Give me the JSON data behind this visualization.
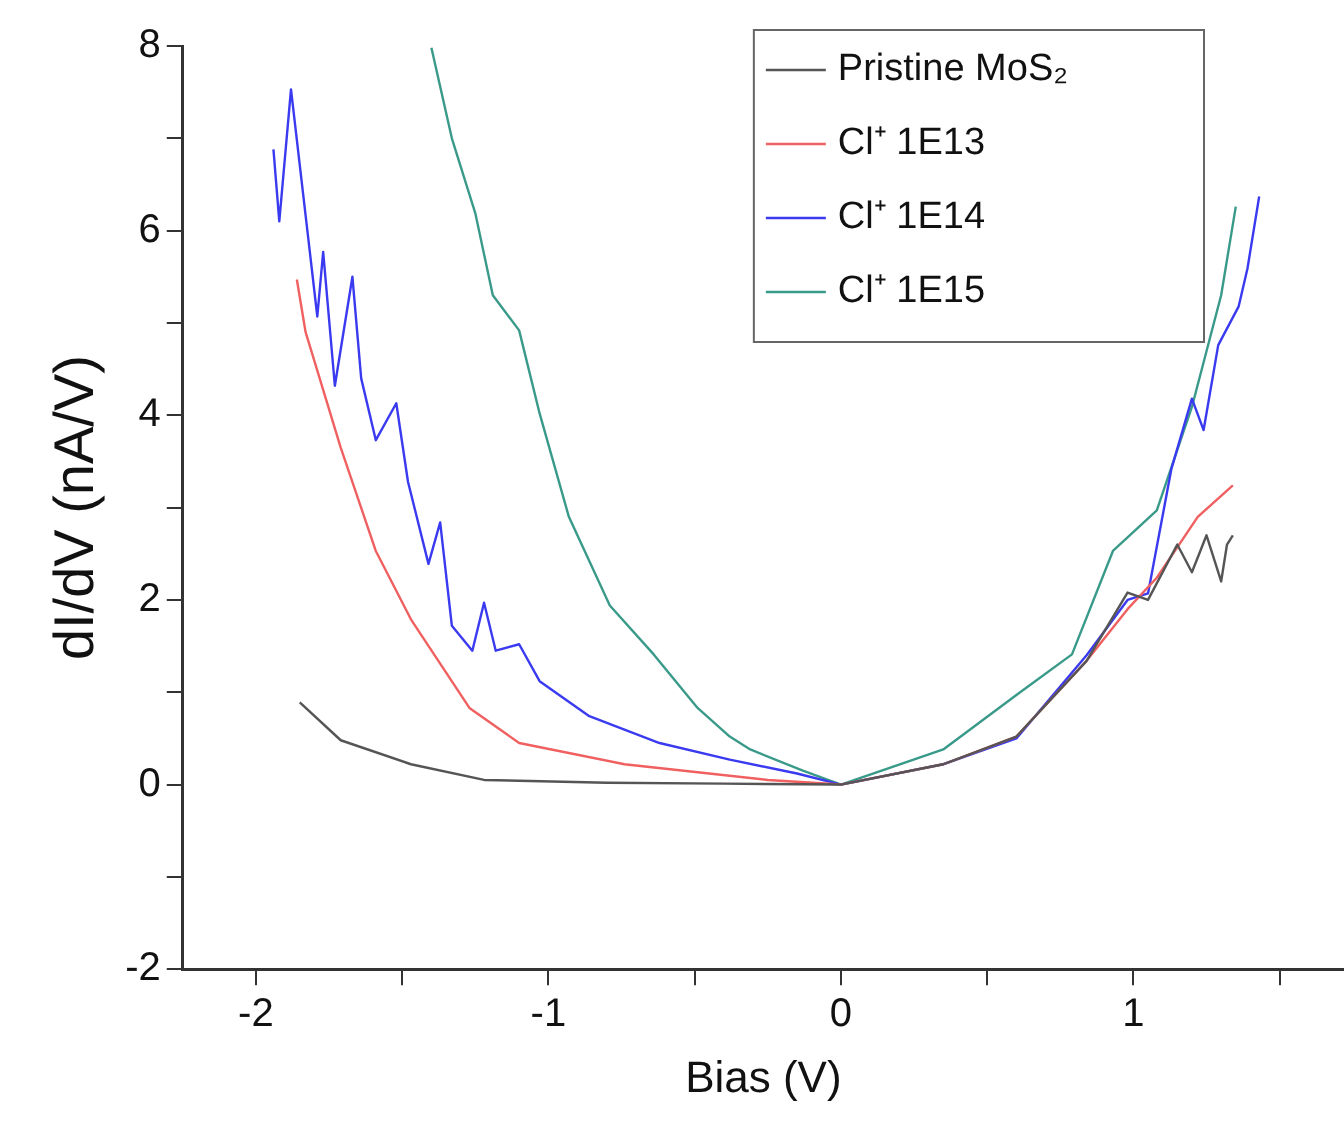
{
  "chart_data": {
    "type": "line",
    "xlabel": "Bias (V)",
    "ylabel": "dI/dV (nA/V)",
    "xlim": [
      -2.25,
      1.72
    ],
    "ylim": [
      -2,
      8
    ],
    "xticks": [
      -2,
      {
        "value": -1.5,
        "label": null
      },
      -1,
      {
        "value": -0.5,
        "label": null
      },
      0,
      {
        "value": 0.5,
        "label": null
      },
      1,
      {
        "value": 1.5,
        "label": null
      }
    ],
    "yticks": [
      -2,
      {
        "value": -1,
        "label": null
      },
      0,
      {
        "value": 1,
        "label": null
      },
      2,
      {
        "value": 3,
        "label": null
      },
      4,
      {
        "value": 5,
        "label": null
      },
      6,
      {
        "value": 7,
        "label": null
      },
      8
    ],
    "grid": false,
    "legend": "top right",
    "marker": "none",
    "line_style": "solid",
    "series": [
      {
        "name": "Pristine MoS₂",
        "color": "#555555",
        "x": [
          -1.85,
          -1.71,
          -1.47,
          -1.22,
          -0.8,
          -0.4,
          0,
          0.35,
          0.6,
          0.84,
          0.98,
          1.05,
          1.15,
          1.2,
          1.25,
          1.3,
          1.32,
          1.34
        ],
        "values": [
          0.89,
          0.48,
          0.22,
          0.05,
          0.02,
          0.01,
          0,
          0.22,
          0.52,
          1.34,
          2.08,
          2.0,
          2.6,
          2.3,
          2.7,
          2.2,
          2.6,
          2.7
        ]
      },
      {
        "name": "Cl⁺ 1E13",
        "color": "#f06060",
        "x": [
          -1.86,
          -1.83,
          -1.71,
          -1.59,
          -1.47,
          -1.27,
          -1.1,
          -0.74,
          -0.25,
          0,
          0.35,
          0.6,
          0.84,
          0.98,
          1.08,
          1.22,
          1.34
        ],
        "values": [
          5.47,
          4.9,
          3.65,
          2.53,
          1.79,
          0.83,
          0.45,
          0.22,
          0.05,
          0,
          0.22,
          0.52,
          1.34,
          1.9,
          2.24,
          2.9,
          3.24
        ]
      },
      {
        "name": "Cl⁺ 1E14",
        "color": "#3a3af0",
        "x": [
          -1.94,
          -1.92,
          -1.88,
          -1.79,
          -1.77,
          -1.73,
          -1.67,
          -1.64,
          -1.59,
          -1.52,
          -1.48,
          -1.41,
          -1.37,
          -1.33,
          -1.26,
          -1.22,
          -1.18,
          -1.1,
          -1.03,
          -0.86,
          -0.62,
          -0.38,
          -0.15,
          0,
          0.35,
          0.6,
          0.84,
          0.98,
          1.05,
          1.13,
          1.2,
          1.24,
          1.29,
          1.36,
          1.39,
          1.43
        ],
        "values": [
          6.88,
          6.1,
          7.53,
          5.07,
          5.77,
          4.32,
          5.5,
          4.4,
          3.73,
          4.13,
          3.28,
          2.39,
          2.84,
          1.72,
          1.45,
          1.97,
          1.45,
          1.52,
          1.12,
          0.74,
          0.45,
          0.27,
          0.12,
          0,
          0.22,
          0.5,
          1.4,
          2.0,
          2.07,
          3.42,
          4.18,
          3.84,
          4.76,
          5.18,
          5.59,
          6.37
        ]
      },
      {
        "name": "Cl⁺ 1E15",
        "color": "#3a9a8a",
        "x": [
          -1.4,
          -1.33,
          -1.25,
          -1.19,
          -1.1,
          -1.03,
          -0.93,
          -0.79,
          -0.64,
          -0.49,
          -0.38,
          -0.31,
          -0.13,
          0,
          0.35,
          0.6,
          0.79,
          0.93,
          1.08,
          1.2,
          1.3,
          1.35
        ],
        "values": [
          7.98,
          7.0,
          6.19,
          5.3,
          4.92,
          4.02,
          2.9,
          1.94,
          1.41,
          0.83,
          0.52,
          0.38,
          0.15,
          0,
          0.38,
          0.97,
          1.41,
          2.53,
          2.97,
          4.09,
          5.3,
          6.26
        ]
      }
    ]
  }
}
